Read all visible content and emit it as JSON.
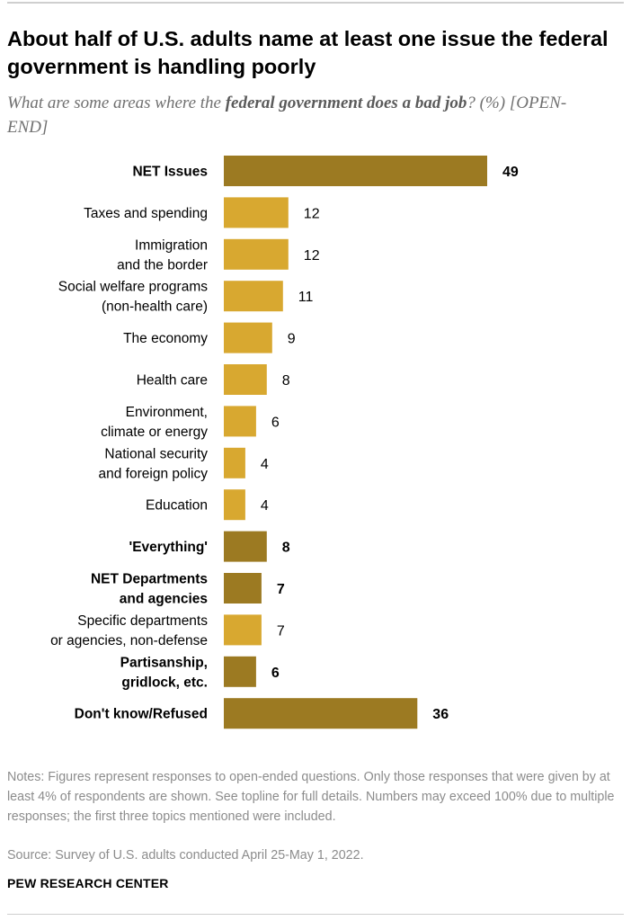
{
  "title": "About half of U.S. adults name at least one issue the federal government is handling poorly",
  "subtitle": {
    "prefix": "What are some areas where the ",
    "emphasis": "federal government does a bad job",
    "suffix": "? (%) [OPEN-END]"
  },
  "colors": {
    "net": "#9c7a22",
    "item": "#d8a830",
    "label": "#000000"
  },
  "chart_data": {
    "type": "bar",
    "orientation": "horizontal",
    "title": "About half of U.S. adults name at least one issue the federal government is handling poorly",
    "xlabel": "",
    "ylabel": "",
    "xlim": [
      0,
      49
    ],
    "categories": [
      {
        "label": [
          "NET Issues"
        ],
        "value": 49,
        "net": true
      },
      {
        "label": [
          "Taxes and spending"
        ],
        "value": 12,
        "net": false
      },
      {
        "label": [
          "Immigration",
          "and the border"
        ],
        "value": 12,
        "net": false
      },
      {
        "label": [
          "Social welfare programs",
          "(non-health care)"
        ],
        "value": 11,
        "net": false
      },
      {
        "label": [
          "The economy"
        ],
        "value": 9,
        "net": false
      },
      {
        "label": [
          "Health care"
        ],
        "value": 8,
        "net": false
      },
      {
        "label": [
          "Environment,",
          "climate or energy"
        ],
        "value": 6,
        "net": false
      },
      {
        "label": [
          "National security",
          "and foreign policy"
        ],
        "value": 4,
        "net": false
      },
      {
        "label": [
          "Education"
        ],
        "value": 4,
        "net": false
      },
      {
        "label": [
          "'Everything'"
        ],
        "value": 8,
        "net": true
      },
      {
        "label": [
          "NET Departments",
          "and agencies"
        ],
        "value": 7,
        "net": true
      },
      {
        "label": [
          "Specific departments",
          "or agencies, non-defense"
        ],
        "value": 7,
        "net": false
      },
      {
        "label": [
          "Partisanship,",
          "gridlock, etc."
        ],
        "value": 6,
        "net": true
      },
      {
        "label": [
          "Don't know/Refused"
        ],
        "value": 36,
        "net": true
      }
    ]
  },
  "notes": "Notes: Figures represent responses to open-ended questions. Only those responses that were given by at least 4% of respondents are shown. See topline for full details. Numbers may exceed 100% due to multiple responses; the first three topics mentioned were included.",
  "source": "Source: Survey of U.S. adults conducted April 25-May 1, 2022.",
  "brand": "PEW RESEARCH CENTER"
}
